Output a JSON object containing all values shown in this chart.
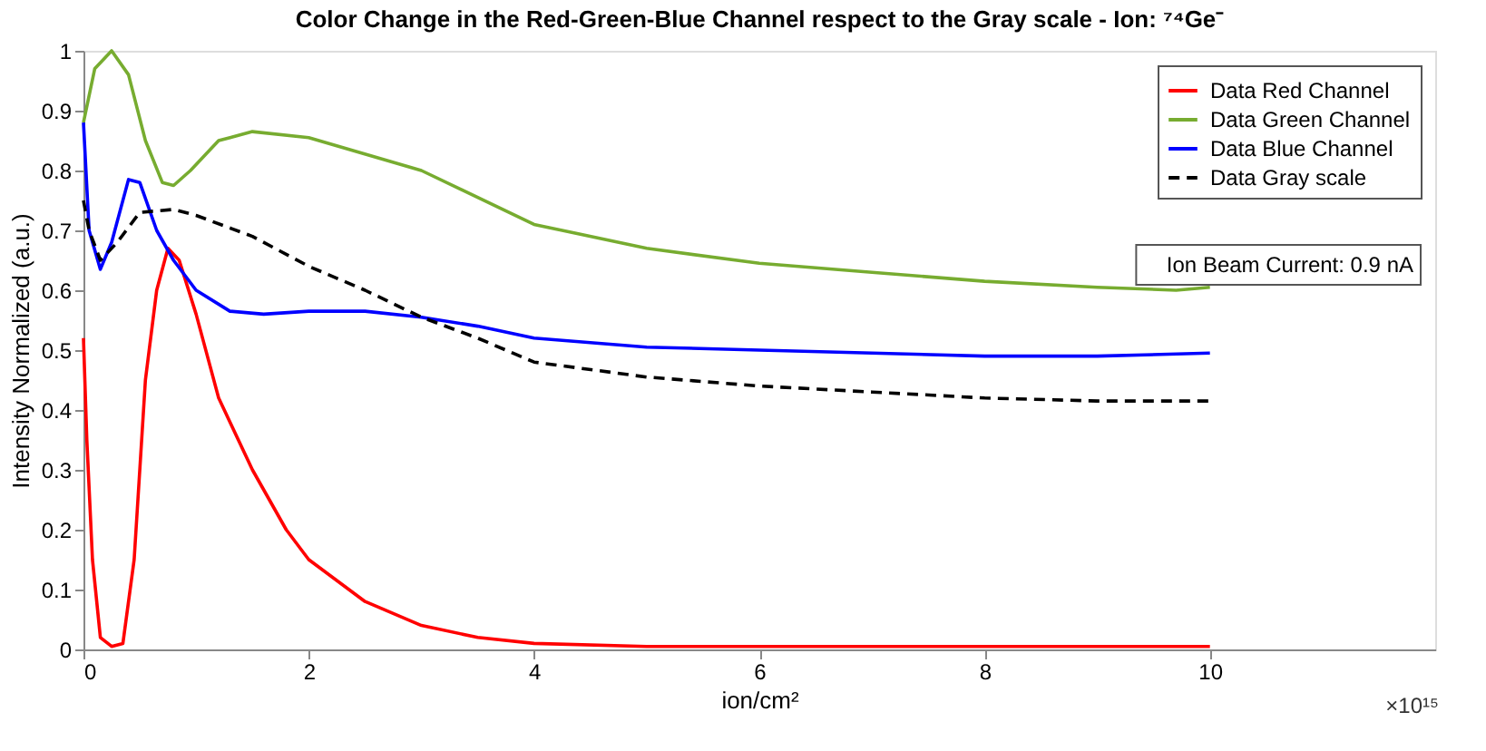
{
  "chart_data": {
    "type": "line",
    "title": "Color Change in the Red-Green-Blue Channel respect to the Gray scale - Ion: ⁷⁴Ge⁻",
    "xlabel": "ion/cm²",
    "ylabel": "Intensity Normalized (a.u.)",
    "xlim": [
      0,
      12
    ],
    "xticks": [
      0,
      2,
      4,
      6,
      8,
      10
    ],
    "ylim": [
      0,
      1
    ],
    "yticks": [
      0,
      0.1,
      0.2,
      0.3,
      0.4,
      0.5,
      0.6,
      0.7,
      0.8,
      0.9,
      1
    ],
    "grid": false,
    "legend": "top right",
    "marker": "none",
    "annotations": [
      "Ion Beam Current: 0.9 nA",
      "×10¹⁵"
    ],
    "series": [
      {
        "name": "Data Red Channel",
        "color": "#ff0000",
        "line_style": "solid",
        "x": [
          0,
          0.03,
          0.08,
          0.15,
          0.25,
          0.35,
          0.45,
          0.55,
          0.65,
          0.75,
          0.85,
          1.0,
          1.2,
          1.5,
          1.8,
          2.0,
          2.5,
          3.0,
          3.5,
          4.0,
          5,
          6,
          7,
          8,
          9,
          10
        ],
        "values": [
          0.52,
          0.35,
          0.15,
          0.02,
          0.005,
          0.01,
          0.15,
          0.45,
          0.6,
          0.67,
          0.65,
          0.56,
          0.42,
          0.3,
          0.2,
          0.15,
          0.08,
          0.04,
          0.02,
          0.01,
          0.005,
          0.005,
          0.005,
          0.005,
          0.005,
          0.005
        ]
      },
      {
        "name": "Data Green Channel",
        "color": "#77ac30",
        "line_style": "solid",
        "x": [
          0,
          0.1,
          0.25,
          0.4,
          0.55,
          0.7,
          0.8,
          0.95,
          1.2,
          1.5,
          2,
          3,
          4,
          5,
          6,
          7,
          8,
          9,
          9.7,
          10
        ],
        "values": [
          0.88,
          0.97,
          1.0,
          0.96,
          0.85,
          0.78,
          0.775,
          0.8,
          0.85,
          0.865,
          0.855,
          0.8,
          0.71,
          0.67,
          0.645,
          0.63,
          0.615,
          0.605,
          0.6,
          0.605
        ]
      },
      {
        "name": "Data Blue Channel",
        "color": "#0000ff",
        "line_style": "solid",
        "x": [
          0,
          0.05,
          0.15,
          0.25,
          0.4,
          0.5,
          0.65,
          0.8,
          1.0,
          1.3,
          1.6,
          2,
          2.5,
          3,
          3.5,
          4,
          5,
          6,
          7,
          8,
          9,
          10
        ],
        "values": [
          0.88,
          0.7,
          0.635,
          0.68,
          0.785,
          0.78,
          0.7,
          0.65,
          0.6,
          0.565,
          0.56,
          0.565,
          0.565,
          0.555,
          0.54,
          0.52,
          0.505,
          0.5,
          0.495,
          0.49,
          0.49,
          0.495
        ]
      },
      {
        "name": "Data Gray scale",
        "color": "#000000",
        "line_style": "dashed",
        "x": [
          0,
          0.05,
          0.15,
          0.3,
          0.5,
          0.8,
          1.0,
          1.5,
          2,
          2.5,
          3,
          3.5,
          4,
          5,
          6,
          7,
          8,
          9,
          10
        ],
        "values": [
          0.75,
          0.7,
          0.65,
          0.68,
          0.73,
          0.735,
          0.725,
          0.69,
          0.64,
          0.6,
          0.555,
          0.52,
          0.48,
          0.455,
          0.44,
          0.43,
          0.42,
          0.415,
          0.415
        ]
      }
    ]
  }
}
